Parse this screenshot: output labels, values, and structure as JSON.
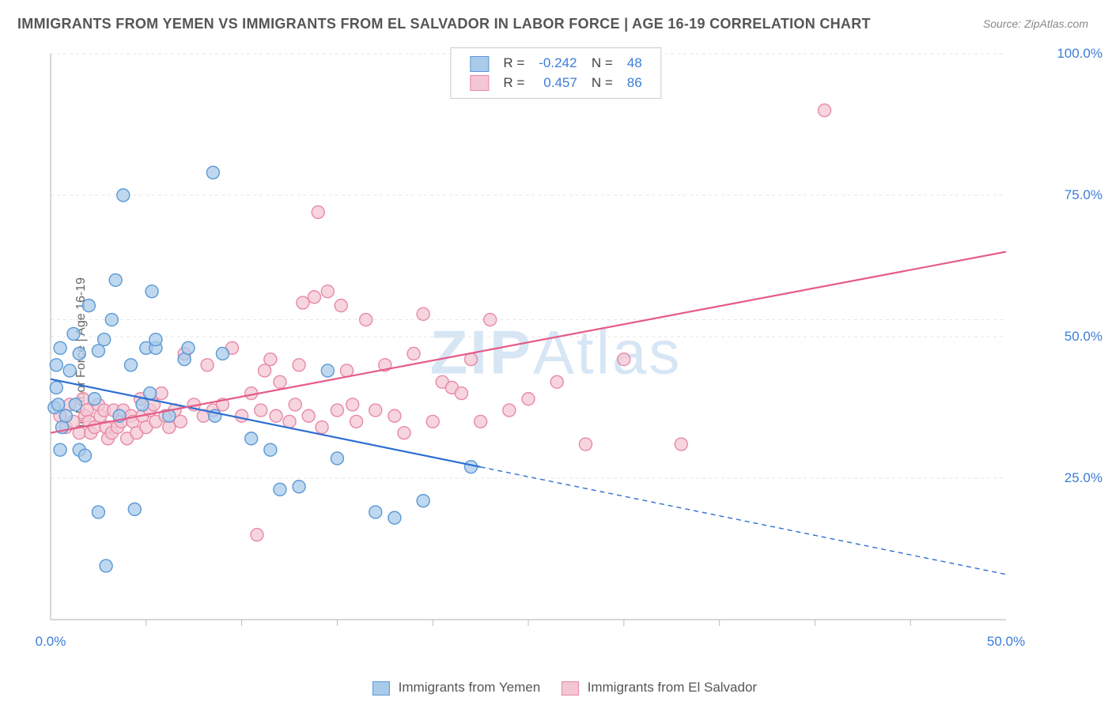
{
  "title": "IMMIGRANTS FROM YEMEN VS IMMIGRANTS FROM EL SALVADOR IN LABOR FORCE | AGE 16-19 CORRELATION CHART",
  "source": "Source: ZipAtlas.com",
  "watermark_a": "ZIP",
  "watermark_b": "Atlas",
  "ylabel": "In Labor Force | Age 16-19",
  "chart": {
    "type": "scatter_with_regression",
    "xlim": [
      0,
      50
    ],
    "ylim": [
      0,
      100
    ],
    "xtick_labels": [
      "0.0%",
      "50.0%"
    ],
    "xtick_positions": [
      0,
      50
    ],
    "xtick_minor": [
      5,
      10,
      15,
      20,
      25,
      30,
      35,
      40,
      45
    ],
    "ytick_labels": [
      "25.0%",
      "50.0%",
      "75.0%",
      "100.0%"
    ],
    "ytick_positions": [
      25,
      50,
      75,
      100
    ],
    "grid_color": "#e6e6e6",
    "grid_dash": "4,4",
    "axis_color": "#bdbdbd",
    "background": "#ffffff",
    "marker_radius": 8,
    "marker_stroke_width": 1.4,
    "line_width": 2.2,
    "series": [
      {
        "name": "Immigrants from Yemen",
        "fill": "#a9cbea",
        "stroke": "#5a99d6",
        "line_color": "#2d6fd1",
        "r_label": "R =",
        "r_value": "-0.242",
        "n_label": "N =",
        "n_value": "48",
        "regression": {
          "x1": 0,
          "y1": 42.5,
          "x2": 50,
          "y2": 8,
          "solid_until_x": 22.5
        },
        "points": [
          [
            0.2,
            37.5
          ],
          [
            0.3,
            41
          ],
          [
            0.3,
            45
          ],
          [
            0.4,
            38
          ],
          [
            0.5,
            30
          ],
          [
            0.5,
            48
          ],
          [
            0.6,
            34
          ],
          [
            0.8,
            36
          ],
          [
            1.0,
            44
          ],
          [
            1.2,
            50.5
          ],
          [
            1.3,
            38
          ],
          [
            1.5,
            47
          ],
          [
            1.5,
            30
          ],
          [
            1.8,
            29
          ],
          [
            2.0,
            55.5
          ],
          [
            2.3,
            39
          ],
          [
            2.5,
            19
          ],
          [
            2.5,
            47.5
          ],
          [
            2.8,
            49.5
          ],
          [
            2.9,
            9.5
          ],
          [
            3.2,
            53
          ],
          [
            3.4,
            60
          ],
          [
            3.6,
            36
          ],
          [
            3.8,
            75
          ],
          [
            4.2,
            45
          ],
          [
            4.4,
            19.5
          ],
          [
            4.8,
            38
          ],
          [
            5.0,
            48
          ],
          [
            5.2,
            40
          ],
          [
            5.3,
            58
          ],
          [
            5.5,
            48
          ],
          [
            5.5,
            49.5
          ],
          [
            6.2,
            36
          ],
          [
            7.0,
            46
          ],
          [
            7.2,
            48
          ],
          [
            8.5,
            79
          ],
          [
            8.6,
            36
          ],
          [
            9.0,
            47
          ],
          [
            10.5,
            32
          ],
          [
            11.5,
            30
          ],
          [
            12.0,
            23
          ],
          [
            13.0,
            23.5
          ],
          [
            14.5,
            44
          ],
          [
            15.0,
            28.5
          ],
          [
            17.0,
            19
          ],
          [
            18.0,
            18
          ],
          [
            19.5,
            21
          ],
          [
            22.0,
            27
          ]
        ]
      },
      {
        "name": "Immigrants from El Salvador",
        "fill": "#f3c7d3",
        "stroke": "#e889a6",
        "line_color": "#e45b87",
        "r_label": "R =",
        "r_value": "0.457",
        "n_label": "N =",
        "n_value": "86",
        "regression": {
          "x1": 0,
          "y1": 33,
          "x2": 50,
          "y2": 65,
          "solid_until_x": 50
        },
        "points": [
          [
            0.5,
            36
          ],
          [
            0.8,
            34
          ],
          [
            1.0,
            38
          ],
          [
            1.2,
            35
          ],
          [
            1.5,
            33
          ],
          [
            1.7,
            39
          ],
          [
            1.8,
            36
          ],
          [
            1.9,
            37
          ],
          [
            2.0,
            35
          ],
          [
            2.1,
            33
          ],
          [
            2.3,
            34
          ],
          [
            2.5,
            38
          ],
          [
            2.6,
            36
          ],
          [
            2.8,
            37
          ],
          [
            2.9,
            34
          ],
          [
            3.0,
            32
          ],
          [
            3.2,
            33
          ],
          [
            3.3,
            37
          ],
          [
            3.5,
            34
          ],
          [
            3.7,
            35
          ],
          [
            3.8,
            37
          ],
          [
            4.0,
            32
          ],
          [
            4.2,
            36
          ],
          [
            4.3,
            35
          ],
          [
            4.5,
            33
          ],
          [
            4.7,
            39
          ],
          [
            4.8,
            36
          ],
          [
            5.0,
            34
          ],
          [
            5.2,
            37
          ],
          [
            5.4,
            38
          ],
          [
            5.5,
            35
          ],
          [
            5.8,
            40
          ],
          [
            6.0,
            36
          ],
          [
            6.2,
            34
          ],
          [
            6.5,
            37
          ],
          [
            6.8,
            35
          ],
          [
            7.0,
            47
          ],
          [
            7.5,
            38
          ],
          [
            8.0,
            36
          ],
          [
            8.2,
            45
          ],
          [
            8.5,
            37
          ],
          [
            9.0,
            38
          ],
          [
            9.5,
            48
          ],
          [
            10.0,
            36
          ],
          [
            10.5,
            40
          ],
          [
            10.8,
            15
          ],
          [
            11.0,
            37
          ],
          [
            11.2,
            44
          ],
          [
            11.5,
            46
          ],
          [
            11.8,
            36
          ],
          [
            12.0,
            42
          ],
          [
            12.5,
            35
          ],
          [
            12.8,
            38
          ],
          [
            13.0,
            45
          ],
          [
            13.2,
            56
          ],
          [
            13.5,
            36
          ],
          [
            13.8,
            57
          ],
          [
            14.0,
            72
          ],
          [
            14.2,
            34
          ],
          [
            14.5,
            58
          ],
          [
            15.0,
            37
          ],
          [
            15.2,
            55.5
          ],
          [
            15.5,
            44
          ],
          [
            15.8,
            38
          ],
          [
            16.0,
            35
          ],
          [
            16.5,
            53
          ],
          [
            17.0,
            37
          ],
          [
            17.5,
            45
          ],
          [
            18.0,
            36
          ],
          [
            18.5,
            33
          ],
          [
            19.0,
            47
          ],
          [
            19.5,
            54
          ],
          [
            20.0,
            35
          ],
          [
            20.5,
            42
          ],
          [
            21.0,
            41
          ],
          [
            21.5,
            40
          ],
          [
            22.0,
            46
          ],
          [
            22.5,
            35
          ],
          [
            23.0,
            53
          ],
          [
            24.0,
            37
          ],
          [
            25.0,
            39
          ],
          [
            26.5,
            42
          ],
          [
            28.0,
            31
          ],
          [
            30.0,
            46
          ],
          [
            33.0,
            31
          ],
          [
            40.5,
            90
          ]
        ]
      }
    ]
  },
  "legend_bottom": [
    {
      "swatch_fill": "#a9cbea",
      "swatch_stroke": "#5a99d6",
      "label": "Immigrants from Yemen"
    },
    {
      "swatch_fill": "#f3c7d3",
      "swatch_stroke": "#e889a6",
      "label": "Immigrants from El Salvador"
    }
  ]
}
